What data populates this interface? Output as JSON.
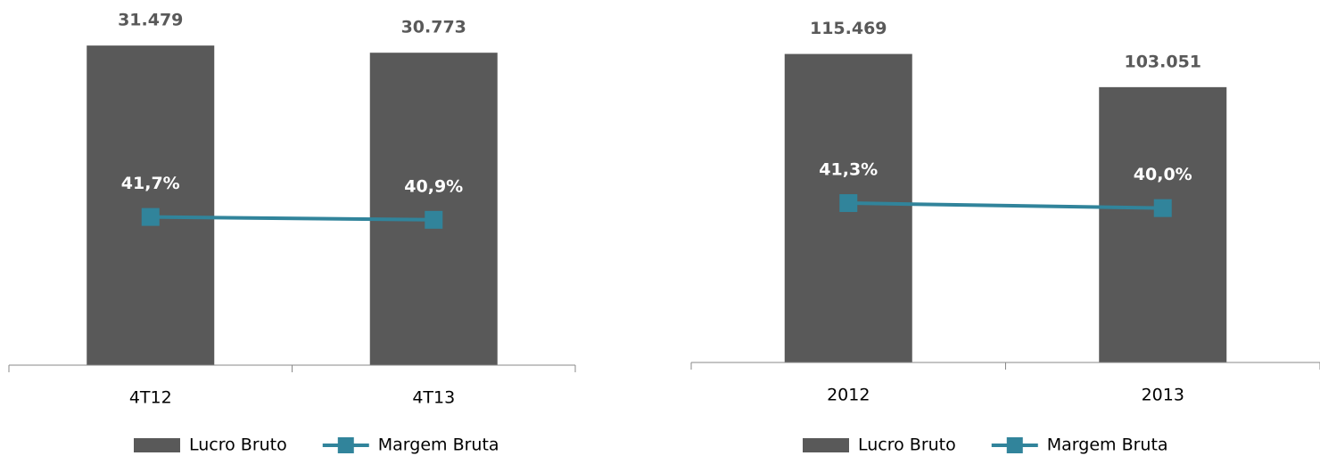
{
  "chart_data": [
    {
      "type": "bar",
      "categories": [
        "4T12",
        "4T13"
      ],
      "series": [
        {
          "name": "Lucro Bruto",
          "type": "bar",
          "color": "#595959",
          "values": [
            31479,
            30773
          ],
          "value_labels": [
            "31.479",
            "30.773"
          ]
        },
        {
          "name": "Margem Bruta",
          "type": "line",
          "axis": "y2",
          "color": "#31849b",
          "values": [
            41.7,
            40.9
          ],
          "value_labels": [
            "41,7%",
            "40,9%"
          ]
        }
      ],
      "ylim": [
        0,
        35000
      ],
      "y2lim": [
        0,
        100
      ],
      "legend": "bottom"
    },
    {
      "type": "bar",
      "categories": [
        "2012",
        "2013"
      ],
      "series": [
        {
          "name": "Lucro Bruto",
          "type": "bar",
          "color": "#595959",
          "values": [
            115469,
            103051
          ],
          "value_labels": [
            "115.469",
            "103.051"
          ]
        },
        {
          "name": "Margem Bruta",
          "type": "line",
          "axis": "y2",
          "color": "#31849b",
          "values": [
            41.3,
            40.0
          ],
          "value_labels": [
            "41,3%",
            "40,0%"
          ]
        }
      ],
      "ylim": [
        0,
        130000
      ],
      "y2lim": [
        0,
        90
      ],
      "legend": "bottom"
    }
  ]
}
